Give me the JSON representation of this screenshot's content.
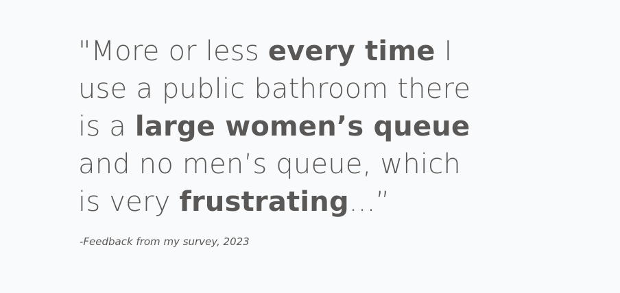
{
  "quote": {
    "lines": [
      [
        {
          "text": "\"More or less ",
          "bold": false
        },
        {
          "text": "every time",
          "bold": true
        },
        {
          "text": " I",
          "bold": false
        }
      ],
      [
        {
          "text": "use a public bathroom there",
          "bold": false
        }
      ],
      [
        {
          "text": "is a ",
          "bold": false
        },
        {
          "text": "large women’s queue",
          "bold": true
        }
      ],
      [
        {
          "text": "and no men’s queue, which",
          "bold": false
        }
      ],
      [
        {
          "text": "is very ",
          "bold": false
        },
        {
          "text": "frustrating",
          "bold": true
        },
        {
          "text": "...”",
          "bold": false
        }
      ]
    ]
  },
  "attribution": "-Feedback from my survey, 2023"
}
